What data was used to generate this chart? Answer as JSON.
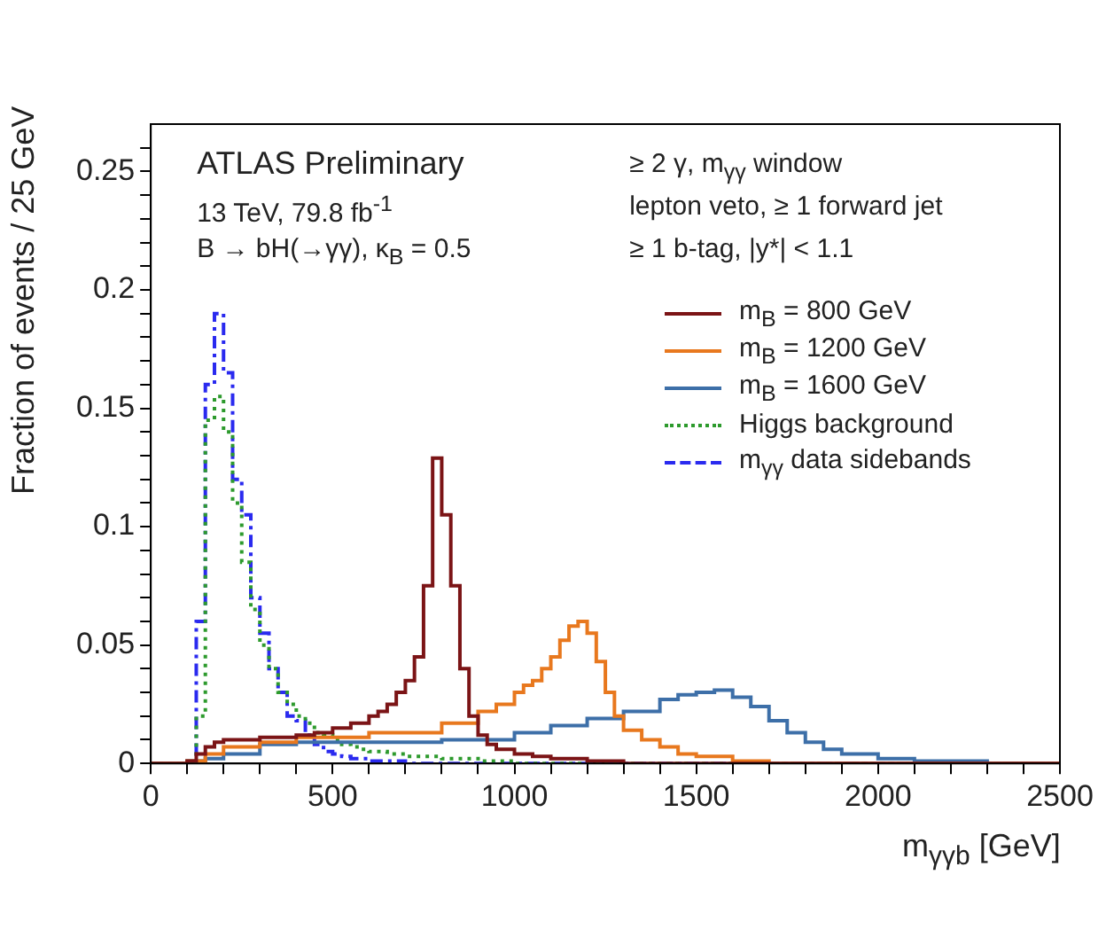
{
  "chart_data": {
    "type": "step",
    "title": "ATLAS Preliminary",
    "xlabel": "m$_{γγb}$ [GeV]",
    "ylabel": "Fraction of events / 25 GeV",
    "annotations": [
      "13 TeV, 79.8 fb$^{-1}$",
      "B → bH(→γγ), κ$_{B}$ = 0.5",
      "≥ 2 γ, m$_{γγ}$ window",
      "lepton veto, ≥ 1 forward jet",
      "≥ 1 b-tag, |y*| < 1.1"
    ],
    "xlim": [
      0,
      2500
    ],
    "xticks": [
      0,
      {
        "value": 100,
        "label": null
      },
      {
        "value": 200,
        "label": null
      },
      {
        "value": 300,
        "label": null
      },
      {
        "value": 400,
        "label": null
      },
      500,
      {
        "value": 600,
        "label": null
      },
      {
        "value": 700,
        "label": null
      },
      {
        "value": 800,
        "label": null
      },
      {
        "value": 900,
        "label": null
      },
      1000,
      {
        "value": 1100,
        "label": null
      },
      {
        "value": 1200,
        "label": null
      },
      {
        "value": 1300,
        "label": null
      },
      {
        "value": 1400,
        "label": null
      },
      1500,
      {
        "value": 1600,
        "label": null
      },
      {
        "value": 1700,
        "label": null
      },
      {
        "value": 1800,
        "label": null
      },
      {
        "value": 1900,
        "label": null
      },
      2000,
      {
        "value": 2100,
        "label": null
      },
      {
        "value": 2200,
        "label": null
      },
      {
        "value": 2300,
        "label": null
      },
      {
        "value": 2400,
        "label": null
      },
      2500
    ],
    "ylim": [
      0,
      0.27
    ],
    "yticks": [
      0,
      {
        "value": 0.01,
        "label": null
      },
      {
        "value": 0.02,
        "label": null
      },
      {
        "value": 0.03,
        "label": null
      },
      {
        "value": 0.04,
        "label": null
      },
      0.05,
      {
        "value": 0.06,
        "label": null
      },
      {
        "value": 0.07,
        "label": null
      },
      {
        "value": 0.08,
        "label": null
      },
      {
        "value": 0.09,
        "label": null
      },
      0.1,
      {
        "value": 0.11,
        "label": null
      },
      {
        "value": 0.12,
        "label": null
      },
      {
        "value": 0.13,
        "label": null
      },
      {
        "value": 0.14,
        "label": null
      },
      0.15,
      {
        "value": 0.16,
        "label": null
      },
      {
        "value": 0.17,
        "label": null
      },
      {
        "value": 0.18,
        "label": null
      },
      {
        "value": 0.19,
        "label": null
      },
      0.2,
      {
        "value": 0.21,
        "label": null
      },
      {
        "value": 0.22,
        "label": null
      },
      {
        "value": 0.23,
        "label": null
      },
      {
        "value": 0.24,
        "label": null
      },
      0.25,
      {
        "value": 0.26,
        "label": null
      }
    ],
    "grid": false,
    "legend": "top right",
    "series": [
      {
        "name": "m$_{B}$ = 800 GeV",
        "color": "#7b1416",
        "line_style": "solid",
        "x": [
          0,
          100,
          125,
          150,
          175,
          200,
          300,
          400,
          450,
          500,
          550,
          600,
          625,
          650,
          675,
          700,
          725,
          750,
          775,
          800,
          825,
          850,
          875,
          900,
          925,
          950,
          1000,
          1050,
          1100,
          1200,
          1300,
          2500
        ],
        "values": [
          0,
          0.001,
          0.004,
          0.007,
          0.009,
          0.01,
          0.011,
          0.012,
          0.013,
          0.015,
          0.017,
          0.02,
          0.022,
          0.025,
          0.03,
          0.035,
          0.045,
          0.075,
          0.129,
          0.105,
          0.075,
          0.04,
          0.02,
          0.012,
          0.008,
          0.006,
          0.004,
          0.003,
          0.002,
          0.001,
          0,
          0
        ]
      },
      {
        "name": "m$_{B}$ = 1200 GeV",
        "color": "#e8781e",
        "line_style": "solid",
        "x": [
          0,
          100,
          150,
          200,
          300,
          400,
          600,
          800,
          900,
          950,
          1000,
          1025,
          1050,
          1075,
          1100,
          1125,
          1150,
          1175,
          1200,
          1225,
          1250,
          1275,
          1300,
          1350,
          1400,
          1450,
          1500,
          1600,
          1700,
          2500
        ],
        "values": [
          0,
          0.001,
          0.004,
          0.007,
          0.009,
          0.011,
          0.013,
          0.017,
          0.022,
          0.025,
          0.03,
          0.033,
          0.035,
          0.04,
          0.045,
          0.052,
          0.058,
          0.06,
          0.055,
          0.043,
          0.03,
          0.02,
          0.014,
          0.01,
          0.007,
          0.004,
          0.003,
          0.001,
          0,
          0
        ]
      },
      {
        "name": "m$_{B}$ = 1600 GeV",
        "color": "#3d6fa8",
        "line_style": "solid",
        "x": [
          0,
          100,
          150,
          200,
          300,
          400,
          500,
          800,
          1000,
          1100,
          1200,
          1300,
          1400,
          1450,
          1500,
          1550,
          1600,
          1650,
          1700,
          1750,
          1800,
          1850,
          1900,
          2000,
          2100,
          2300,
          2500
        ],
        "values": [
          0,
          0.001,
          0.002,
          0.004,
          0.008,
          0.009,
          0.009,
          0.01,
          0.013,
          0.016,
          0.019,
          0.022,
          0.027,
          0.029,
          0.03,
          0.031,
          0.028,
          0.024,
          0.018,
          0.013,
          0.009,
          0.006,
          0.004,
          0.002,
          0.001,
          0,
          0
        ]
      },
      {
        "name": "Higgs background",
        "color": "#2d9a2d",
        "line_style": "dotted",
        "x": [
          0,
          125,
          150,
          175,
          200,
          225,
          250,
          275,
          300,
          325,
          350,
          375,
          400,
          425,
          450,
          475,
          500,
          525,
          550,
          575,
          600,
          650,
          700,
          800,
          900,
          1000,
          2500
        ],
        "values": [
          0,
          0.02,
          0.145,
          0.155,
          0.14,
          0.11,
          0.085,
          0.065,
          0.05,
          0.04,
          0.03,
          0.025,
          0.02,
          0.017,
          0.013,
          0.012,
          0.01,
          0.008,
          0.007,
          0.006,
          0.005,
          0.004,
          0.003,
          0.002,
          0.001,
          0,
          0
        ]
      },
      {
        "name": "m$_{γγ}$ data sidebands",
        "color": "#2a2aef",
        "line_style": "dashed",
        "x": [
          0,
          125,
          150,
          175,
          200,
          225,
          250,
          275,
          300,
          325,
          350,
          375,
          400,
          425,
          450,
          475,
          500,
          525,
          550,
          600,
          700,
          2500
        ],
        "values": [
          0,
          0.06,
          0.16,
          0.19,
          0.165,
          0.12,
          0.105,
          0.07,
          0.055,
          0.04,
          0.03,
          0.02,
          0.018,
          0.012,
          0.008,
          0.005,
          0.004,
          0.003,
          0.002,
          0.001,
          0,
          0
        ]
      }
    ]
  }
}
